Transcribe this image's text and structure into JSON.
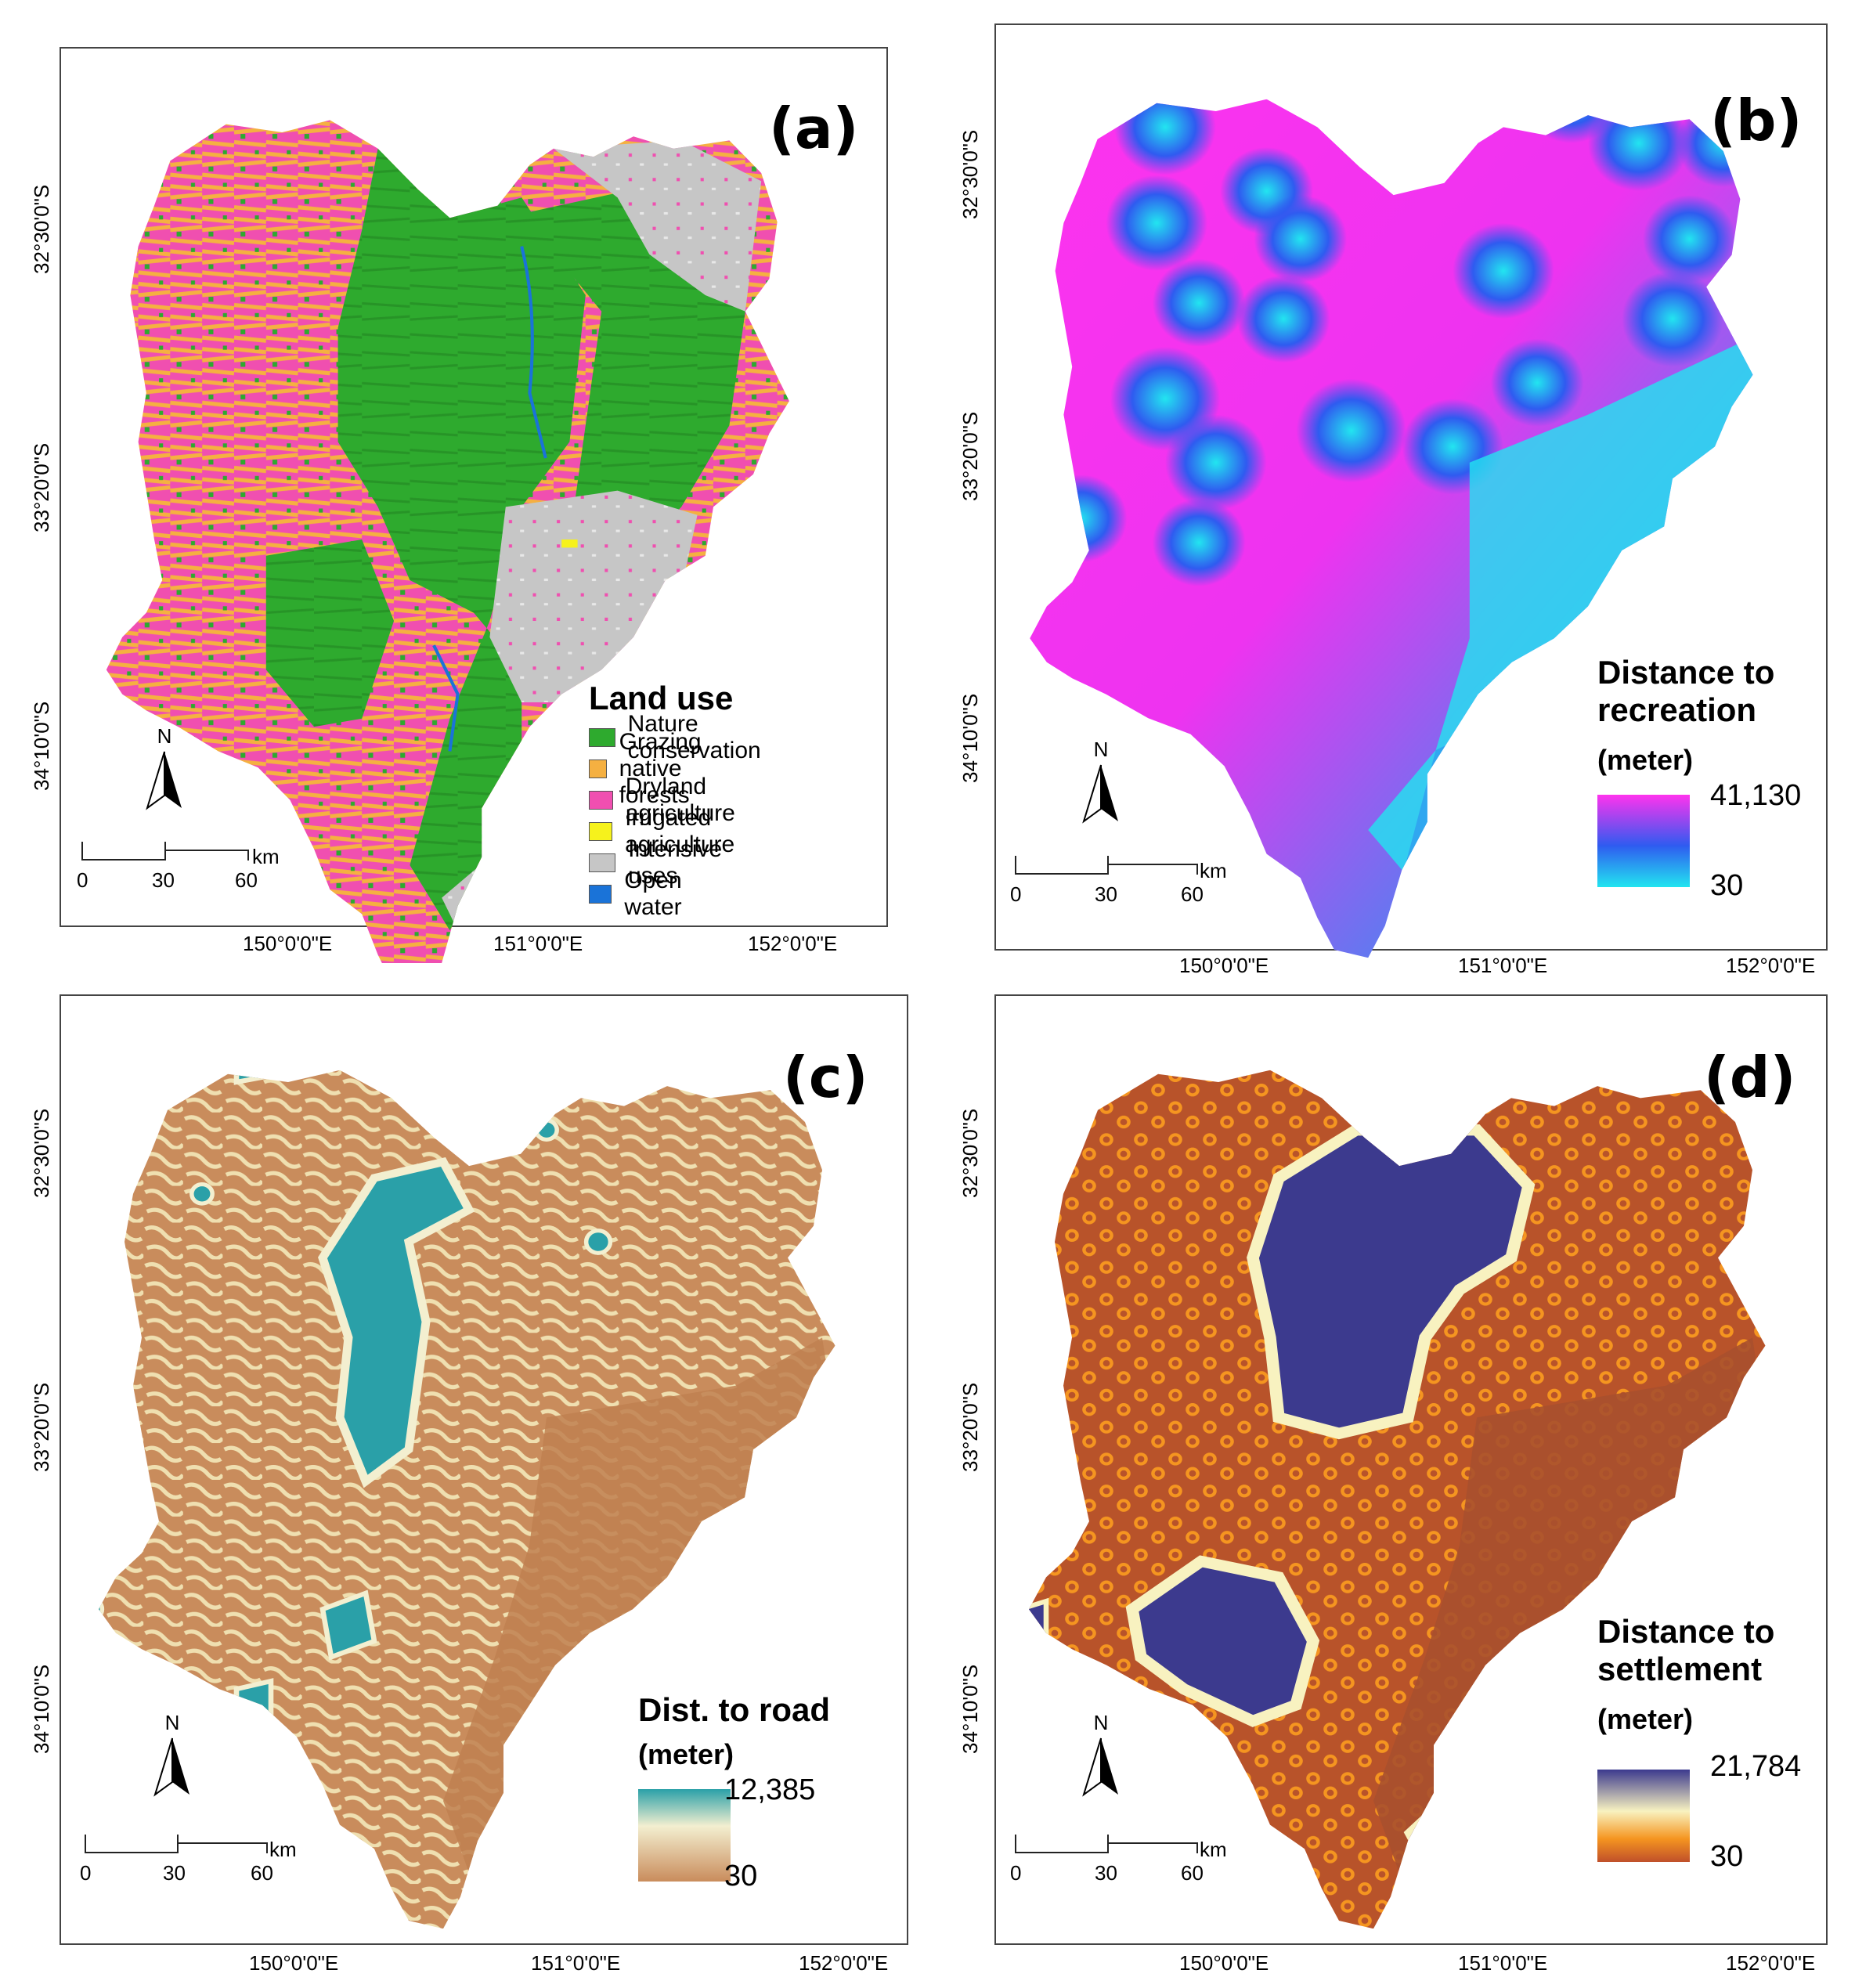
{
  "coordinates": {
    "lat_labels": [
      "32°30'0\"S",
      "33°20'0\"S",
      "34°10'0\"S"
    ],
    "lon_labels": [
      "150°0'0\"E",
      "151°0'0\"E",
      "152°0'0\"E"
    ]
  },
  "north_label": "N",
  "scale_bar": {
    "unit": "km",
    "ticks": [
      "0",
      "30",
      "60"
    ]
  },
  "panels": {
    "a": {
      "label": "(a)",
      "legend_title": "Land use",
      "legend_items": [
        {
          "label": "Nature conservation",
          "color": "#2eaa2e"
        },
        {
          "label": "Grazing native forests",
          "color": "#f5b041"
        },
        {
          "label": "Dryland agriculture",
          "color": "#f04fb0"
        },
        {
          "label": "Irrigated agriculture",
          "color": "#f6f21c"
        },
        {
          "label": "Intensive uses",
          "color": "#c6c6c6"
        },
        {
          "label": "Open water",
          "color": "#1a73d8"
        }
      ]
    },
    "b": {
      "label": "(b)",
      "legend_title_line1": "Distance to",
      "legend_title_line2": "recreation",
      "legend_unit": "(meter)",
      "max_value": "41,130",
      "min_value": "30",
      "colors": [
        "#ff33ee",
        "#2f5bf0",
        "#22e5f0"
      ]
    },
    "c": {
      "label": "(c)",
      "legend_title": "Dist. to road",
      "legend_unit": "(meter)",
      "max_value": "12,385",
      "min_value": "30",
      "colors": [
        "#2aa0a8",
        "#f3efd0",
        "#c98c5c"
      ]
    },
    "d": {
      "label": "(d)",
      "legend_title_line1": "Distance to",
      "legend_title_line2": "settlement",
      "legend_unit": "(meter)",
      "max_value": "21,784",
      "min_value": "30",
      "colors": [
        "#3c3a8e",
        "#f8f2c0",
        "#f59520",
        "#b8532a"
      ]
    }
  }
}
